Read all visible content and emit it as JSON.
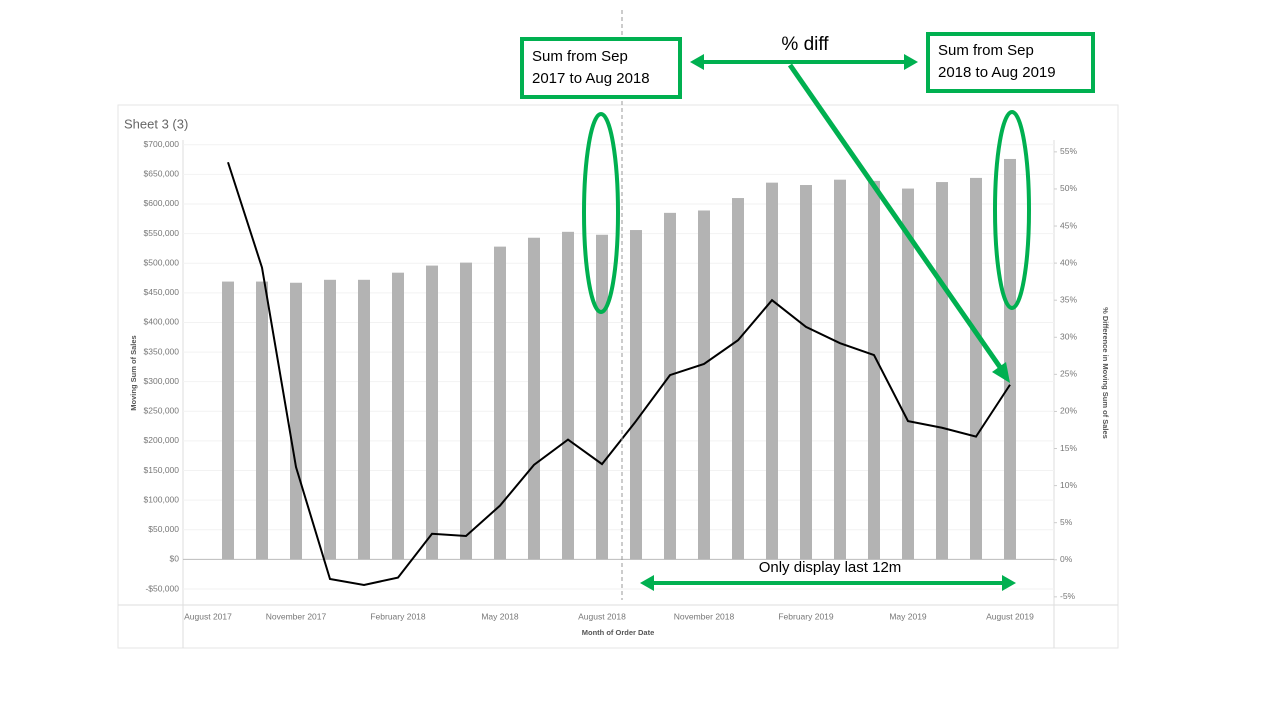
{
  "chart_data": {
    "type": "bar_line",
    "title": "Sheet 3 (3)",
    "x_label": "Month of Order Date",
    "y_label": "Moving Sum of Sales",
    "y2_label": "% Difference in Moving Sum of Sales",
    "categories": [
      "August 2017",
      null,
      null,
      "November 2017",
      null,
      null,
      "February 2018",
      null,
      null,
      "May 2018",
      null,
      null,
      "August 2018",
      null,
      null,
      "November 2018",
      null,
      null,
      "February 2019",
      null,
      null,
      "May 2019",
      null,
      null,
      "August 2019"
    ],
    "series": [
      {
        "name": "Moving Sum of Sales",
        "type": "bar",
        "color": "#b3b3b3",
        "values": [
          null,
          469000,
          469000,
          467000,
          472000,
          472000,
          484000,
          496000,
          501000,
          528000,
          543000,
          553000,
          548000,
          556000,
          585000,
          589000,
          610000,
          636000,
          632000,
          641000,
          639000,
          626000,
          637000,
          644000,
          676000
        ]
      },
      {
        "name": "% Difference in Moving Sum of Sales",
        "type": "line",
        "axis": "y2",
        "color": "#000000",
        "values": [
          null,
          53.6,
          39.4,
          12.5,
          -2.6,
          -3.4,
          -2.4,
          3.5,
          3.2,
          7.3,
          12.8,
          16.2,
          12.9,
          18.7,
          24.9,
          26.4,
          29.6,
          35.0,
          31.4,
          29.2,
          27.6,
          18.7,
          17.8,
          16.6,
          23.6
        ]
      }
    ],
    "ylim": [
      -77000,
      708000
    ],
    "yticks": [
      {
        "value": -50000,
        "label": "-$50,000"
      },
      {
        "value": 0,
        "label": "$0"
      },
      {
        "value": 50000,
        "label": "$50,000"
      },
      {
        "value": 100000,
        "label": "$100,000"
      },
      {
        "value": 150000,
        "label": "$150,000"
      },
      {
        "value": 200000,
        "label": "$200,000"
      },
      {
        "value": 250000,
        "label": "$250,000"
      },
      {
        "value": 300000,
        "label": "$300,000"
      },
      {
        "value": 350000,
        "label": "$350,000"
      },
      {
        "value": 400000,
        "label": "$400,000"
      },
      {
        "value": 450000,
        "label": "$450,000"
      },
      {
        "value": 500000,
        "label": "$500,000"
      },
      {
        "value": 550000,
        "label": "$550,000"
      },
      {
        "value": 600000,
        "label": "$600,000"
      },
      {
        "value": 650000,
        "label": "$650,000"
      },
      {
        "value": 700000,
        "label": "$700,000"
      }
    ],
    "y2lim": [
      -6.1,
      56.6
    ],
    "y2ticks": [
      {
        "value": -5,
        "label": "-5%"
      },
      {
        "value": 0,
        "label": "0%"
      },
      {
        "value": 5,
        "label": "5%"
      },
      {
        "value": 10,
        "label": "10%"
      },
      {
        "value": 15,
        "label": "15%"
      },
      {
        "value": 20,
        "label": "20%"
      },
      {
        "value": 25,
        "label": "25%"
      },
      {
        "value": 30,
        "label": "30%"
      },
      {
        "value": 35,
        "label": "35%"
      },
      {
        "value": 40,
        "label": "40%"
      },
      {
        "value": 45,
        "label": "45%"
      },
      {
        "value": 50,
        "label": "50%"
      },
      {
        "value": 55,
        "label": "55%"
      }
    ],
    "grid": true,
    "annotations": [
      "Sum from Sep 2017 to Aug 2018",
      "% diff",
      "Sum from Sep 2018 to Aug 2019",
      "Only display last 12m"
    ],
    "annotation_color": "#00b050"
  }
}
